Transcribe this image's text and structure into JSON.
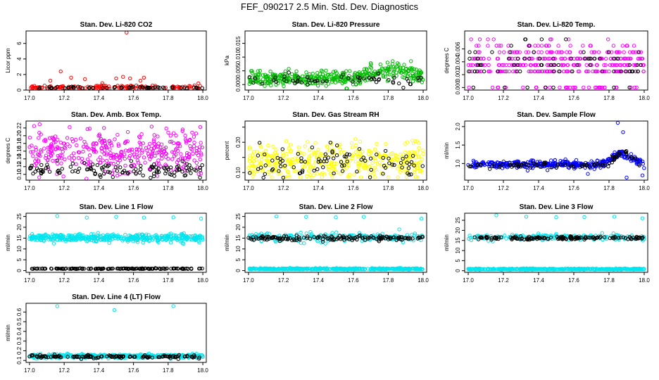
{
  "figure_title": "FEF_090217  2.5 Min. Std. Dev. Diagnostics",
  "colors": {
    "red": "#ff0000",
    "green": "#00bb00",
    "magenta": "#ff00ff",
    "yellow": "#ffff00",
    "blue": "#0000ff",
    "cyan": "#00e5ee",
    "black": "#000000"
  },
  "chart_data": [
    {
      "type": "scatter",
      "title": "Stan. Dev. Li-820 CO2",
      "ylabel": "Licor ppm",
      "xlim": [
        16.98,
        18.02
      ],
      "ylim": [
        0,
        7.6
      ],
      "xticks": [
        17.0,
        17.2,
        17.4,
        17.6,
        17.8,
        18.0
      ],
      "xtick_labels": [
        "17.0",
        "17.2",
        "17.4",
        "17.6",
        "17.8",
        "18.0"
      ],
      "yticks": [
        0,
        2,
        4,
        6
      ],
      "ytick_labels": [
        "0",
        "2",
        "4",
        "6"
      ],
      "color": "#ff0000",
      "series": [
        {
          "name": "main",
          "color": "red",
          "gen": {
            "n": 170,
            "base": 0.32,
            "spread": 0.18,
            "outliers": [
              [
                17.56,
                7.4
              ],
              [
                17.18,
                2.4
              ],
              [
                17.12,
                1.2
              ],
              [
                17.24,
                1.6
              ],
              [
                17.32,
                1.4
              ],
              [
                17.5,
                1.5
              ],
              [
                17.54,
                1.7
              ],
              [
                17.58,
                1.5
              ],
              [
                17.66,
                1.6
              ],
              [
                17.64,
                1.2
              ],
              [
                17.42,
                0.9
              ]
            ]
          }
        },
        {
          "name": "ref",
          "color": "black",
          "gen": {
            "n": 60,
            "base": 0.3,
            "spread": 0.08
          }
        }
      ]
    },
    {
      "type": "scatter",
      "title": "Stan. Dev. Li-820 Pressure",
      "ylabel": "kPa",
      "xlim": [
        16.98,
        18.02
      ],
      "ylim": [
        -0.002,
        0.0195
      ],
      "xticks": [
        17.0,
        17.2,
        17.4,
        17.6,
        17.8,
        18.0
      ],
      "xtick_labels": [
        "17.0",
        "17.2",
        "17.4",
        "17.6",
        "17.8",
        "18.0"
      ],
      "yticks": [
        0.0,
        0.005,
        0.01,
        0.015
      ],
      "ytick_labels": [
        "0.000",
        "0.005",
        "0.010",
        "0.015"
      ],
      "color": "#00bb00",
      "series": [
        {
          "name": "main",
          "color": "green",
          "gen": {
            "n": 420,
            "base": 0.0022,
            "spread": 0.0018,
            "trend": [
              [
                17.6,
                0.0
              ],
              [
                17.85,
                0.0035
              ],
              [
                18.0,
                0.001
              ]
            ],
            "outliers": [
              [
                17.33,
                0.019
              ],
              [
                17.98,
                0.0192
              ],
              [
                17.93,
                0.0085
              ],
              [
                17.7,
                0.0078
              ]
            ]
          }
        },
        {
          "name": "ref",
          "color": "black",
          "gen": {
            "n": 55,
            "base": 0.0018,
            "spread": 0.0012
          }
        }
      ]
    },
    {
      "type": "scatter",
      "title": "Stan. Dev. Li-820 Temp.",
      "ylabel": "degrees C",
      "xlim": [
        16.98,
        18.02
      ],
      "ylim": [
        -0.0004,
        0.0088
      ],
      "xticks": [
        17.0,
        17.2,
        17.4,
        17.6,
        17.8,
        18.0
      ],
      "xtick_labels": [
        "17.0",
        "17.2",
        "17.4",
        "17.6",
        "17.8",
        "18.0"
      ],
      "yticks": [
        0.0,
        0.002,
        0.004,
        0.006
      ],
      "ytick_labels": [
        "0.000",
        "0.002",
        "0.004",
        "0.006"
      ],
      "color": "#ff00ff",
      "series": [
        {
          "name": "main",
          "color": "magenta",
          "gen": {
            "n": 380,
            "levels": [
              0.0,
              0.0025,
              0.0035,
              0.0045,
              0.0055,
              0.0065,
              0.0075
            ],
            "weights": [
              0.08,
              0.2,
              0.25,
              0.22,
              0.14,
              0.08,
              0.03
            ]
          }
        },
        {
          "name": "ref",
          "color": "black",
          "gen": {
            "n": 70,
            "levels": [
              0.0,
              0.0025,
              0.0035,
              0.0045,
              0.0055,
              0.0065,
              0.0075
            ],
            "weights": [
              0.1,
              0.2,
              0.25,
              0.2,
              0.15,
              0.07,
              0.03
            ]
          }
        }
      ]
    },
    {
      "type": "scatter",
      "title": "Stan. Dev. Amb. Box Temp.",
      "ylabel": "degrees C",
      "xlim": [
        16.98,
        18.02
      ],
      "ylim": [
        0.085,
        0.238
      ],
      "xticks": [
        17.0,
        17.2,
        17.4,
        17.6,
        17.8,
        18.0
      ],
      "xtick_labels": [
        "17.0",
        "17.2",
        "17.4",
        "17.6",
        "17.8",
        "18.0"
      ],
      "yticks": [
        0.1,
        0.12,
        0.14,
        0.16,
        0.18,
        0.2,
        0.22
      ],
      "ytick_labels": [
        "0.10",
        "0.12",
        "0.14",
        "0.16",
        "0.18",
        "0.20",
        "0.22"
      ],
      "color": "#ff00ff",
      "series": [
        {
          "name": "main",
          "color": "magenta",
          "gen": {
            "n": 380,
            "base": 0.16,
            "spread": 0.035
          }
        },
        {
          "name": "ref",
          "color": "black",
          "gen": {
            "n": 120,
            "base": 0.112,
            "spread": 0.012
          }
        }
      ]
    },
    {
      "type": "scatter",
      "title": "Stan. Dev. Gas Stream RH",
      "ylabel": "percent",
      "xlim": [
        16.98,
        18.02
      ],
      "ylim": [
        0.075,
        0.27
      ],
      "xticks": [
        17.0,
        17.2,
        17.4,
        17.6,
        17.8,
        18.0
      ],
      "xtick_labels": [
        "17.0",
        "17.2",
        "17.4",
        "17.6",
        "17.8",
        "18.0"
      ],
      "yticks": [
        0.1,
        0.15,
        0.2,
        0.25
      ],
      "ytick_labels": [
        "0.10",
        "",
        "0.20",
        ""
      ],
      "color": "#ffff00",
      "series": [
        {
          "name": "main",
          "color": "yellow",
          "gen": {
            "n": 380,
            "base": 0.14,
            "spread": 0.035
          }
        },
        {
          "name": "ref",
          "color": "black",
          "gen": {
            "n": 90,
            "base": 0.13,
            "spread": 0.035
          }
        }
      ]
    },
    {
      "type": "scatter",
      "title": "Stan. Dev. Sample Flow",
      "ylabel": "ml/min",
      "xlim": [
        16.98,
        18.02
      ],
      "ylim": [
        0.55,
        2.15
      ],
      "xticks": [
        17.0,
        17.2,
        17.4,
        17.6,
        17.8,
        18.0
      ],
      "xtick_labels": [
        "17.0",
        "17.2",
        "17.4",
        "17.6",
        "17.8",
        "18.0"
      ],
      "yticks": [
        1.0,
        1.5,
        2.0
      ],
      "ytick_labels": [
        "1.0",
        "1.5",
        "2.0"
      ],
      "color": "#0000ff",
      "series": [
        {
          "name": "main",
          "color": "blue",
          "gen": {
            "n": 380,
            "base": 0.98,
            "spread": 0.06,
            "trend": [
              [
                17.75,
                0.0
              ],
              [
                17.87,
                0.3
              ],
              [
                18.0,
                0.0
              ]
            ],
            "outliers": [
              [
                17.85,
                2.1
              ],
              [
                17.88,
                1.85
              ],
              [
                17.68,
                0.72
              ],
              [
                17.9,
                0.62
              ],
              [
                17.99,
                0.68
              ]
            ]
          }
        },
        {
          "name": "ref",
          "color": "black",
          "gen": {
            "n": 80,
            "base": 0.95,
            "spread": 0.05,
            "trend": [
              [
                17.78,
                0.0
              ],
              [
                17.88,
                0.4
              ],
              [
                17.98,
                0.0
              ]
            ]
          }
        }
      ]
    },
    {
      "type": "scatter",
      "title": "Stan. Dev. Line 1 Flow",
      "ylabel": "ml/min",
      "xlim": [
        16.98,
        18.02
      ],
      "ylim": [
        -0.8,
        26.5
      ],
      "xticks": [
        17.0,
        17.2,
        17.4,
        17.6,
        17.8,
        18.0
      ],
      "xtick_labels": [
        "17.0",
        "17.2",
        "17.4",
        "17.6",
        "17.8",
        "18.0"
      ],
      "yticks": [
        0,
        5,
        10,
        15,
        20,
        25
      ],
      "ytick_labels": [
        "0",
        "5",
        "10",
        "15",
        "20",
        "25"
      ],
      "color": "#00e5ee",
      "series": [
        {
          "name": "main",
          "color": "cyan",
          "gen": {
            "n": 420,
            "base": 15.2,
            "spread": 1.0,
            "outliers": [
              [
                17.16,
                25.2
              ],
              [
                17.33,
                24.5
              ],
              [
                17.5,
                24.8
              ],
              [
                17.66,
                24.5
              ],
              [
                17.83,
                24.6
              ],
              [
                17.99,
                24.0
              ],
              [
                17.14,
                12.5
              ],
              [
                17.46,
                12.8
              ]
            ]
          }
        },
        {
          "name": "ref",
          "color": "black",
          "gen": {
            "n": 150,
            "base": 0.9,
            "spread": 0.12
          }
        }
      ]
    },
    {
      "type": "scatter",
      "title": "Stan. Dev. Line 2 Flow",
      "ylabel": "ml/min",
      "xlim": [
        16.98,
        18.02
      ],
      "ylim": [
        -0.8,
        26.5
      ],
      "xticks": [
        17.0,
        17.2,
        17.4,
        17.6,
        17.8,
        18.0
      ],
      "xtick_labels": [
        "17.0",
        "17.2",
        "17.4",
        "17.6",
        "17.8",
        "18.0"
      ],
      "yticks": [
        0,
        5,
        10,
        15,
        20,
        25
      ],
      "ytick_labels": [
        "0",
        "5",
        "10",
        "15",
        "20",
        "25"
      ],
      "color": "#00e5ee",
      "series": [
        {
          "name": "main",
          "color": "cyan",
          "gen": {
            "n": 420,
            "base": 0.8,
            "spread": 0.2
          }
        },
        {
          "name": "main-high",
          "color": "cyan",
          "gen": {
            "n": 200,
            "base": 15.3,
            "spread": 1.2,
            "outliers": [
              [
                17.16,
                25.0
              ],
              [
                17.33,
                24.8
              ],
              [
                17.5,
                24.6
              ],
              [
                17.66,
                24.8
              ],
              [
                17.99,
                24.0
              ],
              [
                17.3,
                12.8
              ],
              [
                17.44,
                12.5
              ]
            ]
          }
        },
        {
          "name": "ref",
          "color": "black",
          "gen": {
            "n": 150,
            "base": 15.0,
            "spread": 0.7
          }
        }
      ]
    },
    {
      "type": "scatter",
      "title": "Stan. Dev. Line 3 Flow",
      "ylabel": "ml/min",
      "xlim": [
        16.98,
        18.02
      ],
      "ylim": [
        -0.8,
        28.5
      ],
      "xticks": [
        17.0,
        17.2,
        17.4,
        17.6,
        17.8,
        18.0
      ],
      "xtick_labels": [
        "17.0",
        "17.2",
        "17.4",
        "17.6",
        "17.8",
        "18.0"
      ],
      "yticks": [
        0,
        5,
        10,
        15,
        20,
        25
      ],
      "ytick_labels": [
        "0",
        "5",
        "10",
        "15",
        "20",
        "25"
      ],
      "color": "#00e5ee",
      "series": [
        {
          "name": "main",
          "color": "cyan",
          "gen": {
            "n": 420,
            "base": 0.8,
            "spread": 0.2
          }
        },
        {
          "name": "main-high",
          "color": "cyan",
          "gen": {
            "n": 200,
            "base": 16.6,
            "spread": 0.8,
            "outliers": [
              [
                17.16,
                27.5
              ],
              [
                17.33,
                26.8
              ],
              [
                17.5,
                26.5
              ],
              [
                17.66,
                26.6
              ],
              [
                17.83,
                26.8
              ],
              [
                17.99,
                26.0
              ],
              [
                17.14,
                14.5
              ]
            ]
          }
        },
        {
          "name": "ref",
          "color": "black",
          "gen": {
            "n": 150,
            "base": 16.2,
            "spread": 0.5
          }
        }
      ]
    },
    {
      "type": "scatter",
      "title": "Stan. Dev. Line 4 (LT) Flow",
      "ylabel": "ml/min",
      "xlim": [
        16.98,
        18.02
      ],
      "ylim": [
        0.08,
        0.69
      ],
      "xticks": [
        17.0,
        17.2,
        17.4,
        17.6,
        17.8,
        18.0
      ],
      "xtick_labels": [
        "17.0",
        "17.2",
        "17.4",
        "17.6",
        "17.8",
        "18.0"
      ],
      "yticks": [
        0.1,
        0.2,
        0.3,
        0.4,
        0.5,
        0.6
      ],
      "ytick_labels": [
        "0.1",
        "0.2",
        "0.3",
        "0.4",
        "0.5",
        "0.6"
      ],
      "color": "#00e5ee",
      "series": [
        {
          "name": "main",
          "color": "cyan",
          "gen": {
            "n": 420,
            "base": 0.145,
            "spread": 0.012,
            "outliers": [
              [
                17.16,
                0.66
              ],
              [
                17.49,
                0.62
              ],
              [
                17.83,
                0.66
              ]
            ]
          }
        },
        {
          "name": "ref",
          "color": "black",
          "gen": {
            "n": 130,
            "base": 0.14,
            "spread": 0.01
          }
        }
      ]
    }
  ]
}
